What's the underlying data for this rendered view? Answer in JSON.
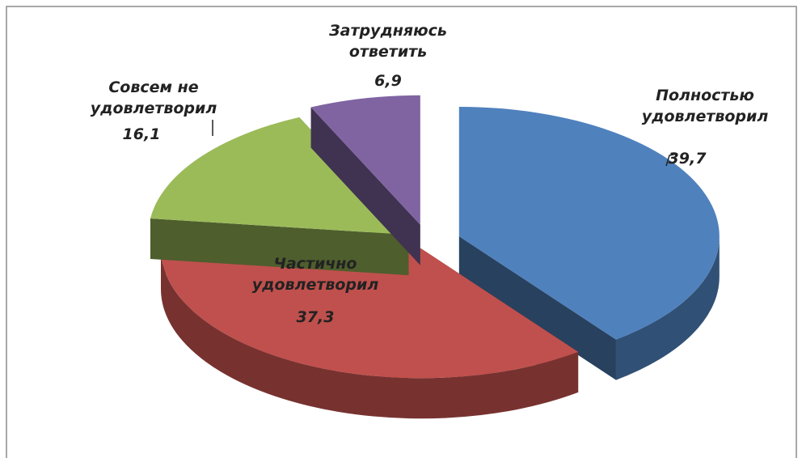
{
  "chart_data": {
    "type": "pie3d",
    "categories": [
      "Полностью удовлетворил",
      "Частично удовлетворил",
      "Совсем не удовлетворил",
      "Затрудняюсь ответить"
    ],
    "values": [
      39.7,
      37.3,
      16.1,
      6.9
    ],
    "value_labels": [
      "39,7",
      "37,3",
      "16,1",
      "6,9"
    ],
    "colors": [
      "#4f81bd",
      "#c0504d",
      "#9bbb59",
      "#8064a2"
    ]
  }
}
